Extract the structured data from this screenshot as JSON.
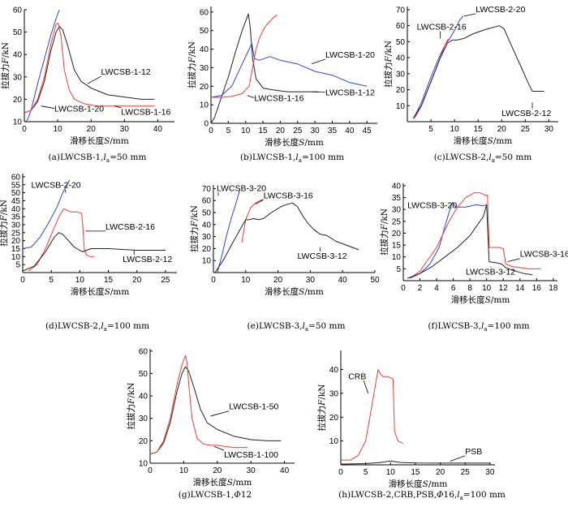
{
  "chart_data": [
    {
      "id": "a",
      "type": "line",
      "caption": "(a)LWCSB-1,la=50 mm",
      "xlabel": "滑移长度S/mm",
      "ylabel": "拉拔力F/kN",
      "xlim": [
        0,
        45
      ],
      "ylim": [
        10,
        60
      ],
      "xticks": [
        0,
        10,
        20,
        30,
        40
      ],
      "yticks": [
        10,
        20,
        30,
        40,
        50,
        60
      ],
      "series": [
        {
          "name": "LWCSB-1-12",
          "color": "#222222",
          "x": [
            0,
            2,
            4,
            6,
            8,
            9.5,
            10.5,
            11.5,
            13,
            15,
            17,
            20,
            25,
            30,
            35,
            39
          ],
          "y": [
            14,
            15,
            19,
            28,
            42,
            50,
            52.5,
            51,
            44,
            33,
            28,
            25,
            22,
            21,
            20,
            20
          ]
        },
        {
          "name": "LWCSB-1-20",
          "color": "#3344cc",
          "x": [
            0.3,
            1,
            2,
            4,
            6,
            8,
            9.5,
            10.5
          ],
          "y": [
            10,
            11,
            15,
            27,
            38,
            49,
            56,
            60
          ]
        },
        {
          "name": "LWCSB-1-16",
          "color": "#e8403a",
          "x": [
            0,
            2,
            4,
            6,
            8,
            9.5,
            10.2,
            11,
            12,
            13.5,
            15,
            18,
            22,
            28,
            34,
            39
          ],
          "y": [
            14,
            15,
            20,
            30,
            45,
            53.5,
            54,
            48,
            33,
            24,
            20,
            18,
            17,
            17,
            17,
            17
          ]
        }
      ],
      "annotations": [
        {
          "text": "LWCSB-1-12",
          "x": 23,
          "y": 31,
          "ax": 19,
          "ay": 27
        },
        {
          "text": "LWCSB-1-20",
          "x": 9,
          "y": 14.5,
          "ax": 5,
          "ay": 17
        },
        {
          "text": "LWCSB-1-16",
          "x": 29,
          "y": 13,
          "ax": 27,
          "ay": 17
        }
      ]
    },
    {
      "id": "b",
      "type": "line",
      "caption": "(b)LWCSB-1,la=100 mm",
      "xlabel": "滑移长度S/mm",
      "ylabel": "拉拔力F/kN",
      "xlim": [
        0,
        48
      ],
      "ylim": [
        0,
        63
      ],
      "xticks": [
        0,
        5,
        10,
        15,
        20,
        25,
        30,
        35,
        40,
        45
      ],
      "yticks": [
        0,
        10,
        20,
        30,
        40,
        50,
        60
      ],
      "series": [
        {
          "name": "LWCSB-1-12",
          "color": "#222222",
          "x": [
            0,
            1,
            3,
            5,
            7,
            9,
            10,
            10.8,
            11.3,
            12,
            13,
            15,
            18,
            22,
            26,
            31
          ],
          "y": [
            0,
            3,
            14,
            25,
            38,
            50,
            55,
            59,
            52,
            35,
            24,
            19,
            18,
            17,
            17,
            17
          ]
        },
        {
          "name": "LWCSB-1-20",
          "color": "#3344cc",
          "x": [
            0,
            3,
            6,
            9,
            11,
            11.8,
            12.5,
            14,
            17,
            20,
            25,
            30,
            35,
            40,
            45
          ],
          "y": [
            14,
            15,
            20,
            32,
            40,
            43,
            35,
            34,
            36,
            34,
            32,
            28,
            26,
            22,
            20
          ]
        },
        {
          "name": "LWCSB-1-16",
          "color": "#e8403a",
          "x": [
            0,
            3,
            6,
            9,
            11,
            12,
            13,
            14,
            15,
            16,
            17,
            18,
            19
          ],
          "y": [
            14,
            14,
            14.5,
            16,
            20,
            30,
            40,
            46,
            50,
            53,
            55,
            57,
            58.5
          ]
        }
      ],
      "annotations": [
        {
          "text": "LWCSB-1-20",
          "x": 33,
          "y": 35.5,
          "ax": 29,
          "ay": 32
        },
        {
          "text": "LWCSB-1-16",
          "x": 12.5,
          "y": 12,
          "ax": 10.5,
          "ay": 15
        },
        {
          "text": "LWCSB-1-12",
          "x": 33,
          "y": 15,
          "ax": 29,
          "ay": 17
        }
      ]
    },
    {
      "id": "c",
      "type": "line",
      "caption": "(c)LWCSB-2,la=50 mm",
      "xlabel": "滑移长度S/mm",
      "ylabel": "拉拔力F/kN",
      "xlim": [
        0,
        32
      ],
      "ylim": [
        0,
        72
      ],
      "xticks": [
        5,
        10,
        15,
        20,
        25,
        30
      ],
      "yticks": [
        10,
        20,
        30,
        40,
        50,
        60,
        70
      ],
      "series": [
        {
          "name": "LWCSB-2-20",
          "color": "#3344cc",
          "x": [
            1.5,
            3,
            5,
            7,
            8,
            9,
            10,
            11,
            11.8
          ],
          "y": [
            3,
            12,
            28,
            42,
            48,
            52,
            57,
            63,
            66
          ]
        },
        {
          "name": "LWCSB-2-16",
          "color": "#e8403a",
          "x": [
            1.5,
            3,
            5,
            7,
            8,
            8.5,
            9
          ],
          "y": [
            2,
            10,
            25,
            40,
            48,
            51,
            52
          ]
        },
        {
          "name": "LWCSB-2-12",
          "color": "#222222",
          "x": [
            1.2,
            3,
            5,
            7,
            8.5,
            9.5,
            10.5,
            12,
            14,
            17,
            19.5,
            20.5,
            22,
            24,
            25.5,
            26.5,
            27.5,
            29
          ],
          "y": [
            2,
            10,
            25,
            40,
            49,
            51,
            51,
            52,
            55,
            58,
            60,
            58,
            48,
            35,
            25,
            19,
            19,
            19
          ]
        }
      ],
      "annotations": [
        {
          "text": "LWCSB-2-20",
          "x": 14.5,
          "y": 68.5,
          "ax": 12,
          "ay": 66
        },
        {
          "text": "LWCSB-2-16",
          "x": 2,
          "y": 57.5,
          "ax": 7,
          "ay": 52
        },
        {
          "text": "LWCSB-2-12",
          "x": 20,
          "y": 3.5,
          "ax": 26.5,
          "ay": 12
        }
      ]
    },
    {
      "id": "d",
      "type": "line",
      "caption": "(d)LWCSB-2,la=100 mm",
      "xlabel": "滑移长度S/mm",
      "ylabel": "拉拔力F/kN",
      "xlim": [
        0,
        27
      ],
      "ylim": [
        0,
        62
      ],
      "xticks": [
        0,
        5,
        10,
        15,
        20,
        25
      ],
      "yticks": [
        5,
        10,
        15,
        20,
        25,
        30,
        35,
        40,
        45,
        50,
        55,
        60
      ],
      "series": [
        {
          "name": "LWCSB-2-20",
          "color": "#3344cc",
          "x": [
            0,
            1.5,
            3,
            4.5,
            6,
            7,
            7.8,
            8.2
          ],
          "y": [
            15,
            16,
            22,
            31,
            41,
            50,
            55,
            58
          ]
        },
        {
          "name": "LWCSB-2-16",
          "color": "#e8403a",
          "x": [
            1,
            2.5,
            4,
            5.5,
            6.5,
            7.2,
            7.8,
            8.5,
            9.5,
            10.3,
            10.5,
            10.8,
            11.2,
            11.8,
            12.5
          ],
          "y": [
            1,
            5,
            15,
            28,
            36,
            40,
            39,
            38,
            38,
            37,
            30,
            14,
            11,
            10,
            10
          ]
        },
        {
          "name": "LWCSB-2-12",
          "color": "#222222",
          "x": [
            0,
            2,
            4,
            5.5,
            6.3,
            7,
            8,
            9,
            10.5,
            12,
            15,
            20,
            25
          ],
          "y": [
            1,
            4,
            13,
            22,
            25,
            24,
            20,
            16,
            13,
            15,
            15,
            14,
            14
          ]
        }
      ],
      "annotations": [
        {
          "text": "LWCSB-2-20",
          "x": 1.5,
          "y": 53,
          "ax": 7.5,
          "ay": 50
        },
        {
          "text": "LWCSB-2-16",
          "x": 14.5,
          "y": 27,
          "ax": 11,
          "ay": 26
        },
        {
          "text": "LWCSB-2-12",
          "x": 17.5,
          "y": 6.5,
          "ax": 19.5,
          "ay": 14
        }
      ]
    },
    {
      "id": "e",
      "type": "line",
      "caption": "(e)LWCSB-3,la=50 mm",
      "xlabel": "滑移长度S/mm",
      "ylabel": "拉拔力F/kN",
      "xlim": [
        0,
        50
      ],
      "ylim": [
        0,
        73
      ],
      "xticks": [
        0,
        10,
        20,
        30,
        40,
        50
      ],
      "yticks": [
        10,
        20,
        30,
        40,
        50,
        60,
        70
      ],
      "series": [
        {
          "name": "LWCSB-3-20",
          "color": "#3344cc",
          "x": [
            1.2,
            2.5,
            4,
            5.5,
            7,
            8.2
          ],
          "y": [
            0,
            13,
            30,
            45,
            58,
            69
          ]
        },
        {
          "name": "LWCSB-3-16",
          "color": "#e8403a",
          "x": [
            8.8,
            10,
            11.5,
            13,
            14.5,
            15.3
          ],
          "y": [
            25,
            44,
            54,
            58,
            60,
            61
          ]
        },
        {
          "name": "LWCSB-3-12",
          "color": "#222222",
          "x": [
            0.5,
            3,
            6,
            8.5,
            10,
            11,
            12.5,
            14,
            15.5,
            18,
            21,
            23,
            24.5,
            26,
            27.5,
            29,
            31,
            33,
            35,
            38,
            41,
            45
          ],
          "y": [
            0,
            10,
            25,
            37,
            44,
            44,
            45,
            44,
            45,
            50,
            55,
            57,
            58,
            55,
            48,
            42,
            36,
            32,
            31,
            26,
            23,
            19
          ]
        }
      ],
      "annotations": [
        {
          "text": "LWCSB-3-20",
          "x": 1,
          "y": 68,
          "ax": 1.5,
          "ay": 64
        },
        {
          "text": "LWCSB-3-16",
          "x": 15.5,
          "y": 62,
          "ax": 13,
          "ay": 57
        },
        {
          "text": "LWCSB-3-12",
          "x": 26,
          "y": 11.5,
          "ax": 33,
          "ay": 21
        }
      ]
    },
    {
      "id": "f",
      "type": "line",
      "caption": "(f)LWCSB-3,la=100 mm",
      "xlabel": "滑移长度S/mm",
      "ylabel": "拉拔力F/kN",
      "xlim": [
        0,
        18.5
      ],
      "ylim": [
        0,
        41
      ],
      "xticks": [
        0,
        2,
        4,
        6,
        8,
        10,
        12,
        14,
        16,
        18
      ],
      "yticks": [
        5,
        10,
        15,
        20,
        25,
        30,
        35,
        40
      ],
      "series": [
        {
          "name": "LWCSB-3-20",
          "color": "#3344cc",
          "x": [
            0.8,
            2,
            3.2,
            4.3,
            5,
            5.6,
            5.9,
            6.3,
            7.5,
            8.8,
            9.5,
            10
          ],
          "y": [
            1,
            3,
            7,
            14,
            23,
            30,
            33,
            31,
            31,
            32,
            31.5,
            32
          ]
        },
        {
          "name": "LWCSB-3-16",
          "color": "#e8403a",
          "x": [
            0.8,
            2,
            4,
            5.5,
            6.5,
            7.5,
            8.5,
            9.2,
            9.8,
            10.1,
            10.3,
            11.5,
            12,
            12.3,
            13,
            15,
            16.5
          ],
          "y": [
            1,
            4,
            14,
            25,
            31,
            35,
            37,
            37,
            36,
            36,
            14,
            14,
            13.5,
            7,
            6,
            5,
            5
          ]
        },
        {
          "name": "LWCSB-3-12",
          "color": "#222222",
          "x": [
            0.5,
            2,
            3.5,
            5,
            6.5,
            8,
            9,
            9.6,
            10,
            10.3,
            11.2,
            11.8,
            12.3,
            13,
            14.5,
            15.5
          ],
          "y": [
            1,
            3,
            6,
            10,
            14,
            19,
            24,
            27,
            32,
            8,
            7.5,
            7,
            5.5,
            4.5,
            3,
            2.5
          ]
        }
      ],
      "annotations": [
        {
          "text": "LWCSB-3-20",
          "x": 0.5,
          "y": 30.5,
          "ax": 5.2,
          "ay": 30
        },
        {
          "text": "LWCSB-3-16",
          "x": 14,
          "y": 10,
          "ax": 12.5,
          "ay": 8
        },
        {
          "text": "LWCSB-3-12",
          "x": 7.5,
          "y": 2.5,
          "ax": 10.5,
          "ay": 6
        }
      ]
    },
    {
      "id": "g",
      "type": "line",
      "caption": "(g)LWCSB-1,Φ12",
      "xlabel": "滑移长度S/mm",
      "ylabel": "拉拔力F/kN",
      "xlim": [
        0,
        43
      ],
      "ylim": [
        10,
        61
      ],
      "xticks": [
        0,
        10,
        20,
        30,
        40
      ],
      "yticks": [
        10,
        20,
        30,
        40,
        50,
        60
      ],
      "series": [
        {
          "name": "LWCSB-1-50",
          "color": "#222222",
          "x": [
            0,
            2,
            4,
            6,
            8,
            9.5,
            10.5,
            11.5,
            13,
            15,
            17,
            20,
            25,
            30,
            35,
            39
          ],
          "y": [
            14,
            15,
            19,
            28,
            42,
            50,
            53,
            51,
            44,
            34,
            28,
            25,
            22,
            20.5,
            20,
            20
          ]
        },
        {
          "name": "LWCSB-1-100",
          "color": "#e8403a",
          "x": [
            0,
            2,
            4,
            6,
            8,
            9.5,
            10.5,
            11,
            11.5,
            12.5,
            14,
            16,
            18,
            20,
            22,
            25,
            29
          ],
          "y": [
            14,
            15,
            20,
            30,
            45,
            54,
            58,
            55,
            45,
            30,
            21,
            18.5,
            18,
            18,
            17.5,
            17,
            17
          ]
        }
      ],
      "annotations": [
        {
          "text": "LWCSB-1-50",
          "x": 23.5,
          "y": 34,
          "ax": 18,
          "ay": 31
        },
        {
          "text": "LWCSB-1-100",
          "x": 22,
          "y": 12.5,
          "ax": 19,
          "ay": 17.5
        }
      ]
    },
    {
      "id": "h",
      "type": "line",
      "caption": "(h)LWCSB-2,CRB,PSB,Φ16,la=100 mm",
      "xlabel": "滑移长度S/mm",
      "ylabel": "拉拔力F/kN",
      "xlim": [
        0,
        31
      ],
      "ylim": [
        0,
        48
      ],
      "xticks": [
        0,
        5,
        10,
        15,
        20,
        25,
        30
      ],
      "yticks": [
        10,
        20,
        30,
        40
      ],
      "series": [
        {
          "name": "CRB",
          "color": "#e8403a",
          "x": [
            0,
            2,
            3.5,
            5,
            6,
            7,
            7.5,
            8,
            8.5,
            9.5,
            10.5,
            10.8,
            11.5,
            12.5
          ],
          "y": [
            2,
            2,
            4,
            10,
            22,
            34,
            40,
            38,
            37,
            37,
            36,
            14,
            10,
            9
          ]
        },
        {
          "name": "PSB",
          "color": "#222222",
          "x": [
            0,
            5,
            8,
            10,
            12,
            15,
            20,
            25,
            30
          ],
          "y": [
            0.3,
            0.5,
            1,
            1.6,
            1,
            0.8,
            0.7,
            0.7,
            0.7
          ]
        }
      ],
      "annotations": [
        {
          "text": "CRB",
          "x": 1.5,
          "y": 36,
          "ax": 5.5,
          "ay": 30
        },
        {
          "text": "PSB",
          "x": 25,
          "y": 4.5,
          "ax": 22,
          "ay": 1.5
        }
      ]
    }
  ]
}
